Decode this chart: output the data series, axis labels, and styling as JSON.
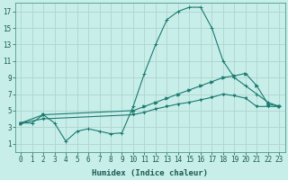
{
  "xlabel": "Humidex (Indice chaleur)",
  "bg_color": "#c8eeea",
  "grid_color": "#b0d4d0",
  "line_color": "#1a7a6e",
  "xlim": [
    -0.5,
    23.5
  ],
  "ylim": [
    0,
    18
  ],
  "xticks": [
    0,
    1,
    2,
    3,
    4,
    5,
    6,
    7,
    8,
    9,
    10,
    11,
    12,
    13,
    14,
    15,
    16,
    17,
    18,
    19,
    20,
    21,
    22,
    23
  ],
  "yticks": [
    1,
    3,
    5,
    7,
    9,
    11,
    13,
    15,
    17
  ],
  "curve1_x": [
    0,
    1,
    2,
    3,
    4,
    5,
    6,
    7,
    8,
    9,
    10,
    11,
    12,
    13,
    14,
    15,
    16,
    17,
    18,
    19,
    20,
    21,
    22,
    23
  ],
  "curve1_y": [
    3.5,
    3.5,
    4.5,
    3.5,
    1.3,
    2.5,
    2.8,
    2.5,
    2.2,
    2.3,
    5.5,
    9.5,
    13,
    16,
    17,
    17.5,
    17.5,
    15,
    11,
    9,
    8,
    7,
    6,
    5.5
  ],
  "curve2_x": [
    0,
    2,
    10,
    11,
    12,
    13,
    14,
    15,
    16,
    17,
    18,
    19,
    20,
    21,
    22,
    23
  ],
  "curve2_y": [
    3.5,
    4.5,
    5.0,
    5.5,
    6.0,
    6.5,
    7.0,
    7.5,
    8.0,
    8.5,
    9.0,
    9.2,
    9.5,
    8.0,
    5.8,
    5.5
  ],
  "curve3_x": [
    0,
    2,
    10,
    11,
    12,
    13,
    14,
    15,
    16,
    17,
    18,
    19,
    20,
    21,
    22,
    23
  ],
  "curve3_y": [
    3.5,
    4.0,
    4.5,
    4.8,
    5.2,
    5.5,
    5.8,
    6.0,
    6.3,
    6.6,
    7.0,
    6.8,
    6.5,
    5.5,
    5.5,
    5.5
  ],
  "xlabel_fontsize": 6.5,
  "tick_fontsize": 5.5
}
